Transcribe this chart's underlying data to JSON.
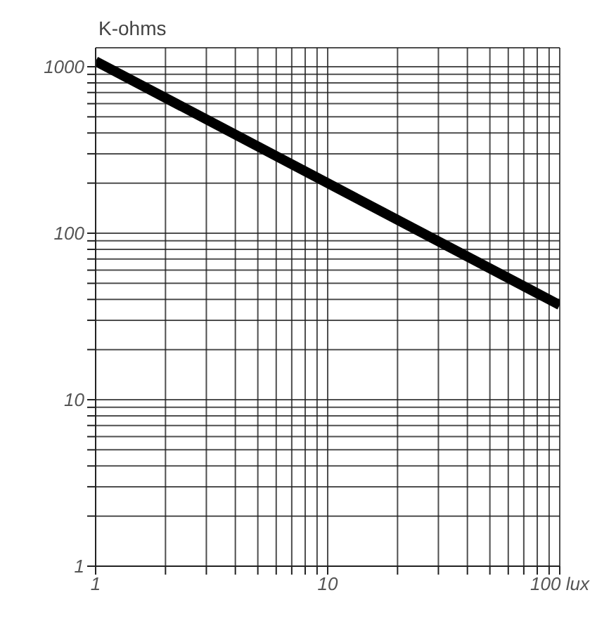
{
  "chart_data": {
    "type": "line",
    "ylabel": "K-ohms",
    "log": "xy",
    "grid": true,
    "marker": "none",
    "line_style": "solid",
    "series": [
      {
        "color": "#000000",
        "x": [
          1,
          100
        ],
        "values": [
          1080,
          37
        ]
      }
    ],
    "xlim": [
      1,
      100
    ],
    "ylim": [
      1,
      1300
    ],
    "xticks": [
      1,
      {
        "value": 2,
        "label": null
      },
      {
        "value": 3,
        "label": null
      },
      {
        "value": 4,
        "label": null
      },
      {
        "value": 5,
        "label": null
      },
      {
        "value": 6,
        "label": null
      },
      {
        "value": 7,
        "label": null
      },
      {
        "value": 8,
        "label": null
      },
      {
        "value": 9,
        "label": null
      },
      10,
      {
        "value": 20,
        "label": null
      },
      {
        "value": 30,
        "label": null
      },
      {
        "value": 40,
        "label": null
      },
      {
        "value": 50,
        "label": null
      },
      {
        "value": 60,
        "label": null
      },
      {
        "value": 70,
        "label": null
      },
      {
        "value": 80,
        "label": null
      },
      {
        "value": 90,
        "label": null
      },
      {
        "value": 100,
        "label": "100 lux"
      }
    ],
    "yticks": [
      1,
      {
        "value": 2,
        "label": null
      },
      {
        "value": 3,
        "label": null
      },
      {
        "value": 4,
        "label": null
      },
      {
        "value": 5,
        "label": null
      },
      {
        "value": 6,
        "label": null
      },
      {
        "value": 7,
        "label": null
      },
      {
        "value": 8,
        "label": null
      },
      {
        "value": 9,
        "label": null
      },
      10,
      {
        "value": 20,
        "label": null
      },
      {
        "value": 30,
        "label": null
      },
      {
        "value": 40,
        "label": null
      },
      {
        "value": 50,
        "label": null
      },
      {
        "value": 60,
        "label": null
      },
      {
        "value": 70,
        "label": null
      },
      {
        "value": 80,
        "label": null
      },
      {
        "value": 90,
        "label": null
      },
      100,
      {
        "value": 200,
        "label": null
      },
      {
        "value": 300,
        "label": null
      },
      {
        "value": 400,
        "label": null
      },
      {
        "value": 500,
        "label": null
      },
      {
        "value": 600,
        "label": null
      },
      {
        "value": 700,
        "label": null
      },
      {
        "value": 800,
        "label": null
      },
      {
        "value": 900,
        "label": null
      },
      1000
    ]
  }
}
